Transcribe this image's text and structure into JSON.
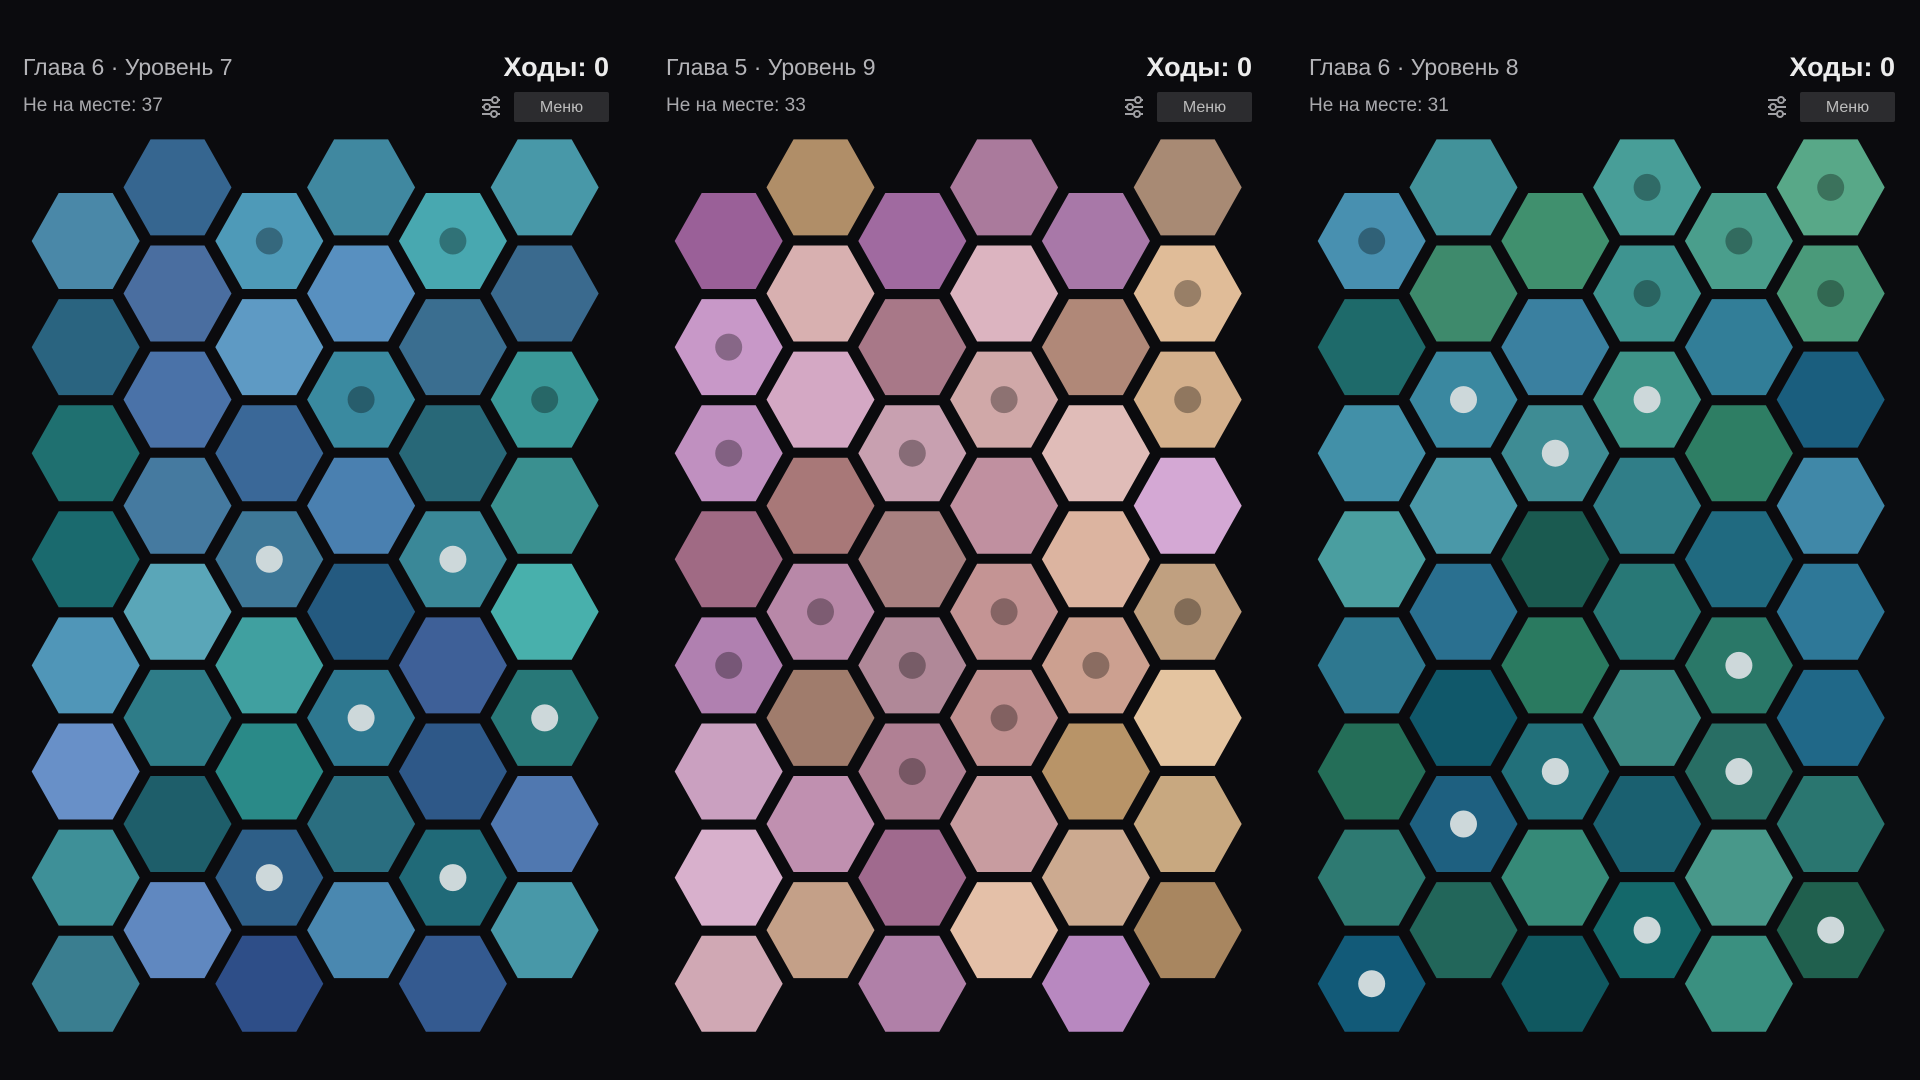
{
  "panels": [
    {
      "title": "Глава 6 · Уровень 7",
      "moves": "Ходы: 0",
      "misplaced": "Не на месте: 37",
      "menu": "Меню",
      "colors": [
        [
          "#4a88a8",
          "#2a6480",
          "#1f7070",
          "#1a6a6e",
          "#5096b8",
          "#6890c8",
          "#3e9098",
          "#3a7e90"
        ],
        [
          "#366690",
          "#4a6ea0",
          "#4a72a8",
          "#457aa0",
          "#5aa6b8",
          "#2e7c88",
          "#1e5e6a",
          "#6088c0"
        ],
        [
          "#4e9ab8",
          "#5e9ac4",
          "#3a6898",
          "#3e7898",
          "#40a0a0",
          "#2a8a88",
          "#2e5f88",
          "#2e4e88"
        ],
        [
          "#4088a0",
          "#5890c0",
          "#3a8aa0",
          "#4a80b0",
          "#245a80",
          "#2e7890",
          "#2a6e80",
          "#4a88b0"
        ],
        [
          "#48a8b0",
          "#3a6e90",
          "#286878",
          "#3a8898",
          "#3e6098",
          "#2e5888",
          "#206a78",
          "#345a90"
        ],
        [
          "#4898a8",
          "#3a6a8e",
          "#3a9898",
          "#3a9090",
          "#48b0ac",
          "#287878",
          "#5078b0",
          "#4898a8"
        ]
      ],
      "dots": [
        [
          null,
          null,
          null,
          null,
          null,
          null,
          null,
          null
        ],
        [
          null,
          null,
          null,
          null,
          null,
          null,
          null,
          null
        ],
        [
          "dark",
          null,
          null,
          "light",
          null,
          null,
          "light",
          null
        ],
        [
          null,
          null,
          "dark",
          null,
          null,
          "light",
          null,
          null
        ],
        [
          "dark",
          null,
          null,
          "light",
          null,
          null,
          "light",
          null
        ],
        [
          null,
          null,
          "dark",
          null,
          null,
          "light",
          null,
          null
        ]
      ]
    },
    {
      "title": "Глава 5 · Уровень 9",
      "moves": "Ходы: 0",
      "misplaced": "Не на месте: 33",
      "menu": "Меню",
      "colors": [
        [
          "#9a6098",
          "#c898c8",
          "#c090c0",
          "#a06a84",
          "#b080b0",
          "#caa0c0",
          "#d8b0cc",
          "#d0a8b4"
        ],
        [
          "#b08e68",
          "#d8b0b0",
          "#d4a8c4",
          "#a87878",
          "#b888a8",
          "#a07c6c",
          "#c090b0",
          "#c4a088"
        ],
        [
          "#a06aa0",
          "#a87888",
          "#c8a0b0",
          "#a88080",
          "#b08898",
          "#b08094",
          "#a06a8e",
          "#b080a8"
        ],
        [
          "#aa7a9c",
          "#dcb4c0",
          "#d0a8a8",
          "#c090a0",
          "#c49494",
          "#c09090",
          "#c89ca0",
          "#e4c0a8"
        ],
        [
          "#a878a8",
          "#b08878",
          "#e0bcb8",
          "#dcb4a0",
          "#cca090",
          "#b89468",
          "#ccaa90",
          "#b888c0"
        ],
        [
          "#a88a74",
          "#e0bc98",
          "#d4b08c",
          "#d4a8d4",
          "#c0a080",
          "#e4c4a0",
          "#c8a880",
          "#a88660"
        ]
      ],
      "dots": [
        [
          null,
          "dark",
          "dark",
          null,
          "dark",
          null,
          null,
          null
        ],
        [
          null,
          null,
          null,
          null,
          "dark",
          null,
          null,
          null
        ],
        [
          null,
          null,
          "dark",
          null,
          "dark",
          "dark",
          null,
          null
        ],
        [
          null,
          null,
          "dark",
          null,
          "dark",
          "dark",
          null,
          null
        ],
        [
          null,
          null,
          null,
          null,
          "dark",
          null,
          null,
          null
        ],
        [
          null,
          "dark",
          "dark",
          null,
          "dark",
          null,
          null,
          null
        ]
      ]
    },
    {
      "title": "Глава 6 · Уровень 8",
      "moves": "Ходы: 0",
      "misplaced": "Не на месте: 31",
      "menu": "Меню",
      "colors": [
        [
          "#4890b0",
          "#1e6a6a",
          "#4290a8",
          "#4a9ea0",
          "#2e7890",
          "#246e58",
          "#2e7a72",
          "#125a78"
        ],
        [
          "#42929a",
          "#3e8a6c",
          "#3a88a0",
          "#4a98a8",
          "#2a7090",
          "#10586a",
          "#1e6080",
          "#22665a"
        ],
        [
          "#40906e",
          "#3a80a0",
          "#3e8c94",
          "#1a5a50",
          "#2a7a60",
          "#22707a",
          "#368a78",
          "#105860"
        ],
        [
          "#489e98",
          "#3e9490",
          "#3e9488",
          "#307e88",
          "#287876",
          "#3a8882",
          "#1a6070",
          "#14686a"
        ],
        [
          "#4a9e8c",
          "#327e98",
          "#2e7e64",
          "#206a80",
          "#2a7868",
          "#286e64",
          "#48988a",
          "#3a9080"
        ],
        [
          "#58a888",
          "#4a9a7a",
          "#1a5e7e",
          "#4088a8",
          "#2e7898",
          "#206888",
          "#2a7670",
          "#20604e"
        ]
      ],
      "dots": [
        [
          "dark",
          null,
          null,
          null,
          null,
          null,
          null,
          "light"
        ],
        [
          null,
          null,
          "light",
          null,
          null,
          null,
          "light",
          null
        ],
        [
          null,
          null,
          "light",
          null,
          null,
          "light",
          null,
          null
        ],
        [
          "dark",
          "dark",
          "light",
          null,
          null,
          null,
          null,
          "light"
        ],
        [
          "dark",
          null,
          null,
          null,
          "light",
          "light",
          null,
          null
        ],
        [
          "dark",
          "dark",
          null,
          null,
          null,
          null,
          null,
          "light"
        ]
      ]
    }
  ]
}
